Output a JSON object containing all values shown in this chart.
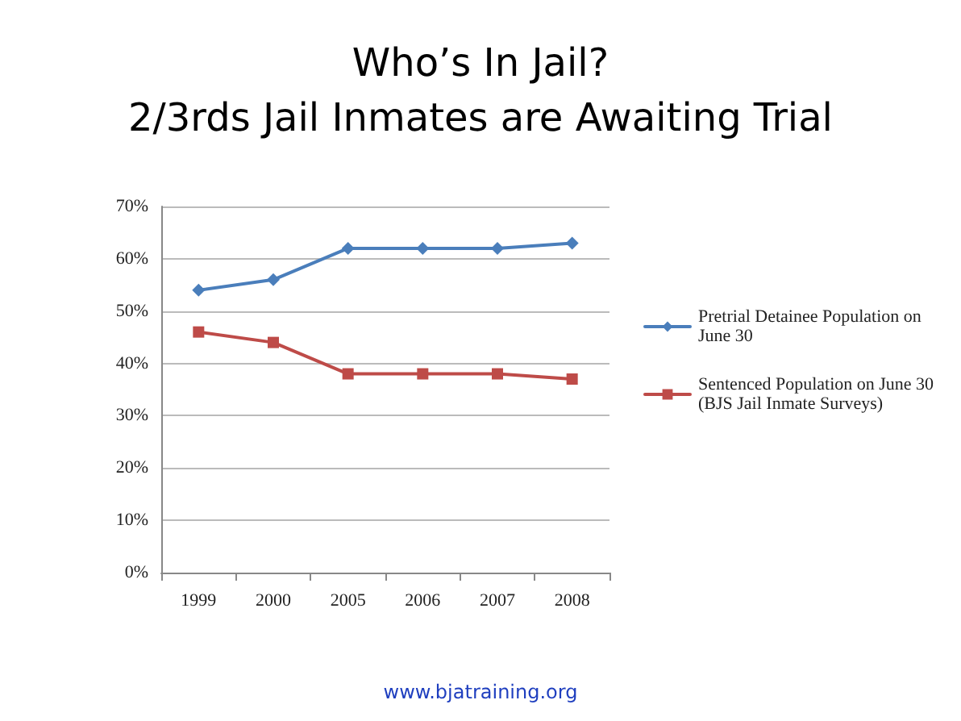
{
  "chart_data": {
    "type": "line",
    "title": "Who’s In Jail?",
    "subtitle": "2/3rds Jail Inmates are Awaiting Trial",
    "categories": [
      "1999",
      "2000",
      "2005",
      "2006",
      "2007",
      "2008"
    ],
    "series": [
      {
        "name": "Pretrial Detainee Population on June 30",
        "color": "#4a7ebb",
        "marker": "diamond",
        "values": [
          54,
          56,
          62,
          62,
          62,
          63
        ]
      },
      {
        "name": "Sentenced Population on June 30 (BJS Jail Inmate Surveys)",
        "color": "#be4b48",
        "marker": "square",
        "values": [
          46,
          44,
          38,
          38,
          38,
          37
        ]
      }
    ],
    "ylim": [
      0,
      70
    ],
    "yticks": [
      {
        "value": 0,
        "label": "0%"
      },
      {
        "value": 10,
        "label": "10%"
      },
      {
        "value": 20,
        "label": "20%"
      },
      {
        "value": 30,
        "label": "30%"
      },
      {
        "value": 40,
        "label": "40%"
      },
      {
        "value": 50,
        "label": "50%"
      },
      {
        "value": 60,
        "label": "60%"
      },
      {
        "value": 70,
        "label": "70%"
      }
    ],
    "grid": "y",
    "legend": "right",
    "annotations": [
      "www.bjatraining.org"
    ]
  }
}
